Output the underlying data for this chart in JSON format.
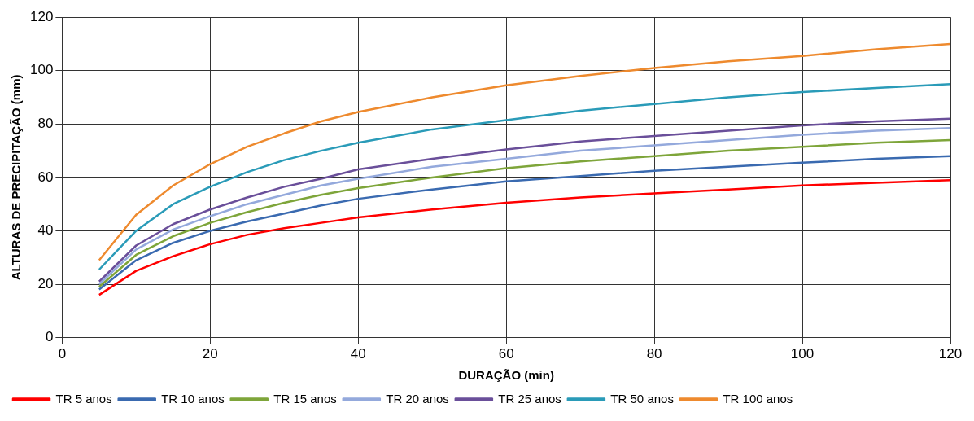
{
  "chart_data": {
    "type": "line",
    "xlabel": "DURAÇÃO (min)",
    "ylabel": "ALTURAS DE PRECIPITAÇÃO (mm)",
    "x": [
      5,
      10,
      15,
      20,
      25,
      30,
      35,
      40,
      50,
      60,
      70,
      80,
      90,
      100,
      110,
      120
    ],
    "xlim": [
      0,
      120
    ],
    "xticks": [
      0,
      20,
      40,
      60,
      80,
      100,
      120
    ],
    "ylim": [
      0,
      120
    ],
    "yticks": [
      0,
      20,
      40,
      60,
      80,
      100,
      120
    ],
    "grid": true,
    "legend": "bottom left",
    "marker": "none",
    "line_style": "solid",
    "series": [
      {
        "name": "TR 5 anos",
        "color": "#ff0000",
        "values": [
          16,
          25,
          30.5,
          35,
          38.5,
          41,
          43,
          45,
          48,
          50.5,
          52.5,
          54,
          55.5,
          57,
          58,
          59
        ]
      },
      {
        "name": "TR 10 anos",
        "color": "#3a6ab0",
        "values": [
          18,
          29,
          35.5,
          40,
          43.5,
          46.5,
          49.5,
          52,
          55.5,
          58.5,
          60.5,
          62.5,
          64,
          65.5,
          67,
          68
        ]
      },
      {
        "name": "TR 15 anos",
        "color": "#7ea53a",
        "values": [
          19,
          31,
          38,
          43,
          47,
          50.5,
          53.5,
          56,
          60,
          63.5,
          66,
          68,
          70,
          71.5,
          73,
          74
        ]
      },
      {
        "name": "TR 20 anos",
        "color": "#94a9dc",
        "values": [
          20,
          33,
          40.5,
          45.5,
          50,
          53.5,
          57,
          59.5,
          64,
          67,
          70,
          72,
          74,
          76,
          77.5,
          78.5
        ]
      },
      {
        "name": "TR 25 anos",
        "color": "#6a4f9a",
        "values": [
          21,
          34.5,
          42.5,
          48,
          52.5,
          56.5,
          59.5,
          63,
          67,
          70.5,
          73.5,
          75.5,
          77.5,
          79.5,
          81,
          82
        ]
      },
      {
        "name": "TR 50 anos",
        "color": "#2a9bb8",
        "values": [
          25.5,
          40,
          50,
          56.5,
          62,
          66.5,
          70,
          73,
          78,
          81.5,
          85,
          87.5,
          90,
          92,
          93.5,
          95
        ]
      },
      {
        "name": "TR 100 anos",
        "color": "#ee8a2e",
        "values": [
          29,
          46,
          57,
          65,
          71.5,
          76.5,
          81,
          84.5,
          90,
          94.5,
          98,
          101,
          103.5,
          105.5,
          108,
          110
        ]
      }
    ]
  }
}
